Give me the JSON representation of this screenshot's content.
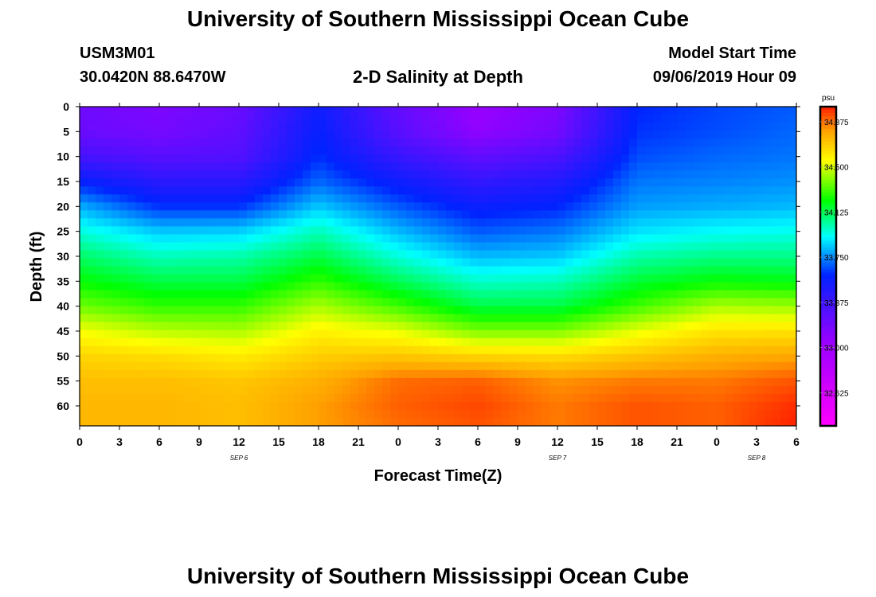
{
  "page": {
    "title_top": "University of Southern Mississippi Ocean Cube",
    "title_bottom": "University of Southern Mississippi Ocean Cube",
    "station_id": "USM3M01",
    "station_coords": "30.0420N 88.6470W",
    "plot_subtitle": "2-D Salinity at Depth",
    "model_start_label": "Model Start Time",
    "model_start_value": "09/06/2019 Hour 09"
  },
  "chart_data": {
    "type": "heatmap",
    "title": "2-D Salinity at Depth",
    "xlabel": "Forecast Time(Z)",
    "ylabel": "Depth (ft)",
    "x": [
      0,
      6,
      12,
      18,
      24,
      30,
      36,
      42,
      48,
      54
    ],
    "x_tick_labels": [
      "0",
      "3",
      "6",
      "9",
      "12",
      "15",
      "18",
      "21",
      "0",
      "3",
      "6",
      "9",
      "12",
      "15",
      "18",
      "21",
      "0",
      "3",
      "6"
    ],
    "x_range_hours": [
      0,
      54
    ],
    "day_labels": [
      {
        "text": "SEP 6",
        "hour": 12
      },
      {
        "text": "SEP 7",
        "hour": 36
      },
      {
        "text": "SEP 8",
        "hour": 51
      }
    ],
    "y": [
      0,
      5,
      10,
      15,
      20,
      25,
      30,
      35,
      40,
      45,
      50,
      55,
      60,
      64
    ],
    "y_tick_labels": [
      "0",
      "5",
      "10",
      "15",
      "20",
      "25",
      "30",
      "35",
      "40",
      "45",
      "50",
      "55",
      "60"
    ],
    "y_range_ft": [
      0,
      64
    ],
    "values": [
      [
        33.2,
        33.15,
        33.22,
        33.55,
        33.25,
        33.05,
        33.15,
        33.6,
        33.65,
        33.68
      ],
      [
        33.22,
        33.18,
        33.25,
        33.58,
        33.28,
        33.08,
        33.18,
        33.62,
        33.66,
        33.7
      ],
      [
        33.35,
        33.28,
        33.3,
        33.62,
        33.4,
        33.25,
        33.32,
        33.66,
        33.7,
        33.72
      ],
      [
        33.58,
        33.45,
        33.45,
        33.7,
        33.55,
        33.42,
        33.48,
        33.72,
        33.74,
        33.76
      ],
      [
        33.8,
        33.62,
        33.62,
        33.84,
        33.68,
        33.56,
        33.6,
        33.78,
        33.8,
        33.82
      ],
      [
        33.96,
        33.84,
        33.85,
        34.0,
        33.82,
        33.68,
        33.72,
        33.88,
        33.92,
        33.94
      ],
      [
        34.1,
        34.0,
        34.02,
        34.14,
        33.96,
        33.82,
        33.84,
        34.02,
        34.06,
        34.06
      ],
      [
        34.22,
        34.14,
        34.14,
        34.28,
        34.12,
        33.98,
        34.0,
        34.16,
        34.22,
        34.2
      ],
      [
        34.36,
        34.28,
        34.28,
        34.44,
        34.3,
        34.14,
        34.14,
        34.3,
        34.44,
        34.42
      ],
      [
        34.54,
        34.46,
        34.44,
        34.58,
        34.52,
        34.38,
        34.38,
        34.52,
        34.62,
        34.62
      ],
      [
        34.66,
        34.64,
        34.6,
        34.68,
        34.7,
        34.66,
        34.64,
        34.7,
        34.76,
        34.78
      ],
      [
        34.72,
        34.72,
        34.7,
        34.76,
        34.88,
        34.9,
        34.82,
        34.86,
        34.86,
        34.92
      ],
      [
        34.74,
        34.74,
        34.72,
        34.8,
        34.9,
        34.94,
        34.86,
        34.92,
        34.9,
        34.98
      ],
      [
        34.74,
        34.74,
        34.72,
        34.8,
        34.88,
        34.92,
        34.86,
        34.92,
        34.9,
        35.0
      ]
    ],
    "colorbar": {
      "unit": "psu",
      "min": 32.35,
      "max": 35.0,
      "tick_values": [
        34.875,
        34.5,
        34.125,
        33.75,
        33.375,
        33.0,
        32.625
      ],
      "tick_labels": [
        "34.875",
        "34.500",
        "34.125",
        "33.750",
        "33.375",
        "33.000",
        "32.625"
      ],
      "color_stops": [
        {
          "value": 32.35,
          "color": "#ff00ff"
        },
        {
          "value": 33.05,
          "color": "#9900ff"
        },
        {
          "value": 33.6,
          "color": "#0022ff"
        },
        {
          "value": 33.92,
          "color": "#00ffff"
        },
        {
          "value": 34.22,
          "color": "#00ff00"
        },
        {
          "value": 34.55,
          "color": "#ffff00"
        },
        {
          "value": 34.8,
          "color": "#ffa000"
        },
        {
          "value": 35.0,
          "color": "#ff2000"
        }
      ]
    },
    "colors": {
      "axis": "#000000",
      "background": "#ffffff"
    }
  }
}
